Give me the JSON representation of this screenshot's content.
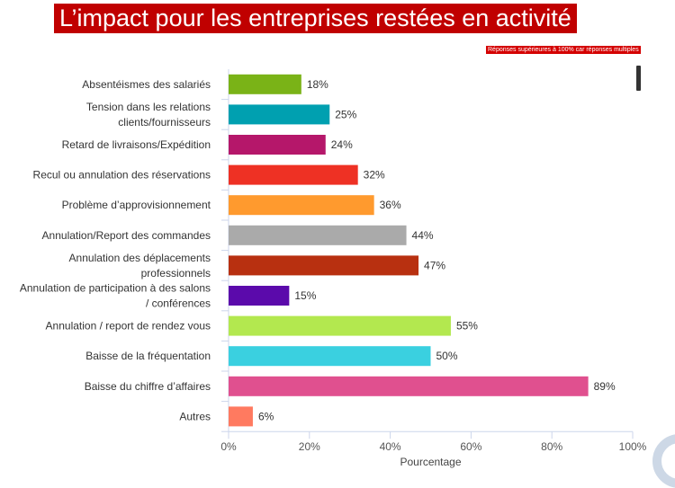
{
  "title": "L’impact pour les entreprises restées en activité",
  "note": "Réponses supérieures à 100% car réponses multiples",
  "chart_data": {
    "type": "bar",
    "orientation": "horizontal",
    "xlabel": "Pourcentage",
    "xlim": [
      0,
      100
    ],
    "xticks": [
      "0%",
      "20%",
      "40%",
      "60%",
      "80%",
      "100%"
    ],
    "categories": [
      [
        "Absentéismes des salariés"
      ],
      [
        "Tension dans les relations",
        "clients/fournisseurs"
      ],
      [
        "Retard de livraisons/Expédition"
      ],
      [
        "Recul ou annulation des réservations"
      ],
      [
        "Problème d’approvisionnement"
      ],
      [
        "Annulation/Report des commandes"
      ],
      [
        "Annulation des déplacements",
        "professionnels"
      ],
      [
        "Annulation de participation à des salons",
        "/ conférences"
      ],
      [
        "Annulation / report de rendez vous"
      ],
      [
        "Baisse de la fréquentation"
      ],
      [
        "Baisse du chiffre d’affaires"
      ],
      [
        "Autres"
      ]
    ],
    "values": [
      18,
      25,
      24,
      32,
      36,
      44,
      47,
      15,
      55,
      50,
      89,
      6
    ],
    "labels": [
      "18%",
      "25%",
      "24%",
      "32%",
      "36%",
      "44%",
      "47%",
      "15%",
      "55%",
      "50%",
      "89%",
      "6%"
    ],
    "colors": [
      "#7ab317",
      "#00a0b0",
      "#b5176a",
      "#ee3124",
      "#ff9a2e",
      "#aaaaaa",
      "#b83010",
      "#5b0aab",
      "#b3e84f",
      "#3ad0e0",
      "#e0508f",
      "#ff7a60"
    ]
  }
}
